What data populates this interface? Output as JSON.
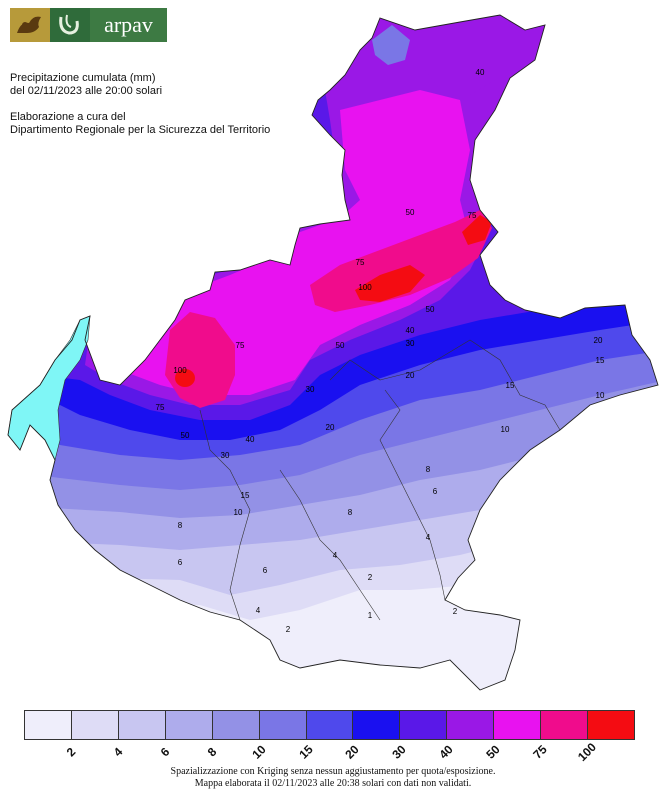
{
  "logo": {
    "name": "arpav",
    "lion_icon": "winged-lion-icon",
    "mark_icon": "arpav-mark-icon"
  },
  "header": {
    "line1": "Precipitazione cumulata (mm)",
    "line2": "del 02/11/2023 alle 20:00 solari",
    "line3": "Elaborazione a cura del",
    "line4": "Dipartimento Regionale per la Sicurezza del Territorio"
  },
  "legend": {
    "classes": [
      {
        "color": "#efeefb",
        "label": "2"
      },
      {
        "color": "#dedcf6",
        "label": "4"
      },
      {
        "color": "#c8c6f1",
        "label": "6"
      },
      {
        "color": "#aeacec",
        "label": "8"
      },
      {
        "color": "#9391e6",
        "label": "10"
      },
      {
        "color": "#7a76e6",
        "label": "15"
      },
      {
        "color": "#4f49ec",
        "label": "20"
      },
      {
        "color": "#1a10f0",
        "label": "30"
      },
      {
        "color": "#5a18e8",
        "label": "40"
      },
      {
        "color": "#9a18e6",
        "label": "50"
      },
      {
        "color": "#e812f0",
        "label": "75"
      },
      {
        "color": "#f00c8c",
        "label": "100"
      },
      {
        "color": "#f40c12",
        "label": ""
      }
    ]
  },
  "map_labels": [
    "100",
    "100",
    "75",
    "75",
    "75",
    "75",
    "50",
    "50",
    "50",
    "50",
    "40",
    "40",
    "40",
    "30",
    "30",
    "30",
    "20",
    "20",
    "20",
    "15",
    "15",
    "15",
    "10",
    "10",
    "10",
    "8",
    "8",
    "8",
    "6",
    "6",
    "6",
    "4",
    "4",
    "4",
    "2",
    "2",
    "2",
    "1"
  ],
  "footer": {
    "line1": "Spazializzazione con Kriging senza nessun aggiustamento per quota/esposizione.",
    "line2": "Mappa elaborata il 02/11/2023 alle 20:38 solari con dati non validati."
  }
}
